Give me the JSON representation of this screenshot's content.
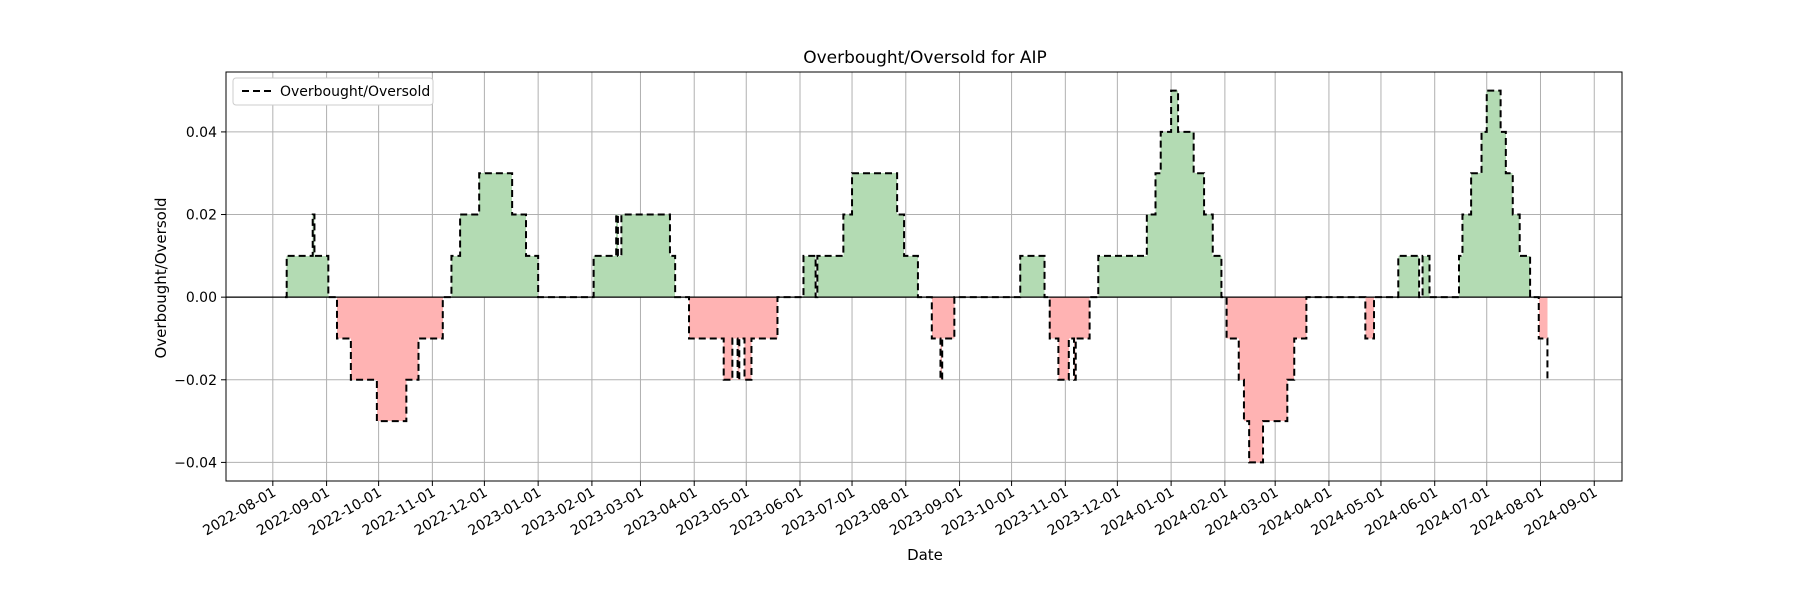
{
  "chart_data": {
    "type": "area",
    "title": "Overbought/Oversold for AIP",
    "xlabel": "Date",
    "ylabel": "Overbought/Oversold",
    "legend": {
      "placement": "top-left",
      "entries": [
        "Overbought/Oversold"
      ]
    },
    "grid": true,
    "xlim": [
      "2022-07-05",
      "2024-09-17"
    ],
    "ylim": [
      -0.0445,
      0.0545
    ],
    "x_ticks": [
      "2022-08-01",
      "2022-09-01",
      "2022-10-01",
      "2022-11-01",
      "2022-12-01",
      "2023-01-01",
      "2023-02-01",
      "2023-03-01",
      "2023-04-01",
      "2023-05-01",
      "2023-06-01",
      "2023-07-01",
      "2023-08-01",
      "2023-09-01",
      "2023-10-01",
      "2023-11-01",
      "2023-12-01",
      "2024-01-01",
      "2024-02-01",
      "2024-03-01",
      "2024-04-01",
      "2024-05-01",
      "2024-06-01",
      "2024-07-01",
      "2024-08-01",
      "2024-09-01"
    ],
    "y_ticks": [
      -0.04,
      -0.02,
      0.0,
      0.02,
      0.04
    ],
    "y_tick_labels": [
      "−0.04",
      "−0.02",
      "0.00",
      "0.02",
      "0.04"
    ],
    "fill_colors": {
      "positive": "#b3dbb3",
      "negative": "#ffb3b3"
    },
    "line_color": "#000000",
    "series": [
      {
        "name": "Overbought/Oversold",
        "style": "dashed-step",
        "points": [
          [
            "2022-08-08",
            0.0
          ],
          [
            "2022-08-09",
            0.01
          ],
          [
            "2022-08-23",
            0.01
          ],
          [
            "2022-08-24",
            0.02
          ],
          [
            "2022-08-25",
            0.01
          ],
          [
            "2022-09-01",
            0.01
          ],
          [
            "2022-09-02",
            0.0
          ],
          [
            "2022-09-06",
            0.0
          ],
          [
            "2022-09-07",
            -0.01
          ],
          [
            "2022-09-14",
            -0.01
          ],
          [
            "2022-09-15",
            -0.02
          ],
          [
            "2022-09-29",
            -0.02
          ],
          [
            "2022-09-30",
            -0.03
          ],
          [
            "2022-10-16",
            -0.03
          ],
          [
            "2022-10-17",
            -0.02
          ],
          [
            "2022-10-23",
            -0.02
          ],
          [
            "2022-10-24",
            -0.01
          ],
          [
            "2022-11-06",
            -0.01
          ],
          [
            "2022-11-07",
            0.0
          ],
          [
            "2022-11-11",
            0.0
          ],
          [
            "2022-11-12",
            0.01
          ],
          [
            "2022-11-16",
            0.01
          ],
          [
            "2022-11-17",
            0.02
          ],
          [
            "2022-11-27",
            0.02
          ],
          [
            "2022-11-28",
            0.03
          ],
          [
            "2022-12-16",
            0.03
          ],
          [
            "2022-12-17",
            0.02
          ],
          [
            "2022-12-24",
            0.02
          ],
          [
            "2022-12-25",
            0.01
          ],
          [
            "2022-12-31",
            0.01
          ],
          [
            "2023-01-01",
            0.0
          ],
          [
            "2023-02-01",
            0.0
          ],
          [
            "2023-02-02",
            0.01
          ],
          [
            "2023-02-14",
            0.01
          ],
          [
            "2023-02-15",
            0.02
          ],
          [
            "2023-02-16",
            0.01
          ],
          [
            "2023-02-18",
            0.02
          ],
          [
            "2023-03-17",
            0.02
          ],
          [
            "2023-03-18",
            0.01
          ],
          [
            "2023-03-20",
            0.01
          ],
          [
            "2023-03-21",
            0.0
          ],
          [
            "2023-03-28",
            0.0
          ],
          [
            "2023-03-29",
            -0.01
          ],
          [
            "2023-04-17",
            -0.01
          ],
          [
            "2023-04-18",
            -0.02
          ],
          [
            "2023-04-22",
            -0.02
          ],
          [
            "2023-04-23",
            -0.01
          ],
          [
            "2023-04-25",
            -0.01
          ],
          [
            "2023-04-26",
            -0.02
          ],
          [
            "2023-04-27",
            -0.01
          ],
          [
            "2023-04-29",
            -0.01
          ],
          [
            "2023-04-30",
            -0.02
          ],
          [
            "2023-05-03",
            -0.02
          ],
          [
            "2023-05-04",
            -0.01
          ],
          [
            "2023-05-18",
            -0.01
          ],
          [
            "2023-05-19",
            0.0
          ],
          [
            "2023-06-02",
            0.0
          ],
          [
            "2023-06-03",
            0.01
          ],
          [
            "2023-06-09",
            0.01
          ],
          [
            "2023-06-10",
            0.0
          ],
          [
            "2023-06-11",
            0.01
          ],
          [
            "2023-06-25",
            0.01
          ],
          [
            "2023-06-26",
            0.02
          ],
          [
            "2023-06-30",
            0.02
          ],
          [
            "2023-07-01",
            0.03
          ],
          [
            "2023-07-26",
            0.03
          ],
          [
            "2023-07-27",
            0.02
          ],
          [
            "2023-07-30",
            0.02
          ],
          [
            "2023-07-31",
            0.01
          ],
          [
            "2023-08-07",
            0.01
          ],
          [
            "2023-08-08",
            0.0
          ],
          [
            "2023-08-15",
            0.0
          ],
          [
            "2023-08-16",
            -0.01
          ],
          [
            "2023-08-20",
            -0.01
          ],
          [
            "2023-08-21",
            -0.02
          ],
          [
            "2023-08-22",
            -0.01
          ],
          [
            "2023-08-28",
            -0.01
          ],
          [
            "2023-08-29",
            0.0
          ],
          [
            "2023-10-05",
            0.0
          ],
          [
            "2023-10-06",
            0.01
          ],
          [
            "2023-10-19",
            0.01
          ],
          [
            "2023-10-20",
            0.0
          ],
          [
            "2023-10-22",
            0.0
          ],
          [
            "2023-10-23",
            -0.01
          ],
          [
            "2023-10-27",
            -0.01
          ],
          [
            "2023-10-28",
            -0.02
          ],
          [
            "2023-11-02",
            -0.02
          ],
          [
            "2023-11-03",
            -0.01
          ],
          [
            "2023-11-05",
            -0.01
          ],
          [
            "2023-11-06",
            -0.02
          ],
          [
            "2023-11-07",
            -0.01
          ],
          [
            "2023-11-14",
            -0.01
          ],
          [
            "2023-11-15",
            0.0
          ],
          [
            "2023-11-19",
            0.0
          ],
          [
            "2023-11-20",
            0.01
          ],
          [
            "2023-12-17",
            0.01
          ],
          [
            "2023-12-18",
            0.02
          ],
          [
            "2023-12-22",
            0.02
          ],
          [
            "2023-12-23",
            0.03
          ],
          [
            "2023-12-25",
            0.03
          ],
          [
            "2023-12-26",
            0.04
          ],
          [
            "2023-12-31",
            0.04
          ],
          [
            "2024-01-01",
            0.05
          ],
          [
            "2024-01-04",
            0.05
          ],
          [
            "2024-01-05",
            0.04
          ],
          [
            "2024-01-13",
            0.04
          ],
          [
            "2024-01-14",
            0.03
          ],
          [
            "2024-01-19",
            0.03
          ],
          [
            "2024-01-20",
            0.02
          ],
          [
            "2024-01-24",
            0.02
          ],
          [
            "2024-01-25",
            0.01
          ],
          [
            "2024-01-29",
            0.01
          ],
          [
            "2024-01-30",
            0.0
          ],
          [
            "2024-02-01",
            0.0
          ],
          [
            "2024-02-02",
            -0.01
          ],
          [
            "2024-02-08",
            -0.01
          ],
          [
            "2024-02-09",
            -0.02
          ],
          [
            "2024-02-11",
            -0.02
          ],
          [
            "2024-02-12",
            -0.03
          ],
          [
            "2024-02-14",
            -0.03
          ],
          [
            "2024-02-15",
            -0.04
          ],
          [
            "2024-02-22",
            -0.04
          ],
          [
            "2024-02-23",
            -0.03
          ],
          [
            "2024-03-07",
            -0.03
          ],
          [
            "2024-03-08",
            -0.02
          ],
          [
            "2024-03-11",
            -0.02
          ],
          [
            "2024-03-12",
            -0.01
          ],
          [
            "2024-03-18",
            -0.01
          ],
          [
            "2024-03-19",
            0.0
          ],
          [
            "2024-04-21",
            0.0
          ],
          [
            "2024-04-22",
            -0.01
          ],
          [
            "2024-04-26",
            -0.01
          ],
          [
            "2024-04-27",
            0.0
          ],
          [
            "2024-05-10",
            0.0
          ],
          [
            "2024-05-11",
            0.01
          ],
          [
            "2024-05-22",
            0.01
          ],
          [
            "2024-05-23",
            0.0
          ],
          [
            "2024-05-24",
            0.0
          ],
          [
            "2024-05-25",
            0.01
          ],
          [
            "2024-05-28",
            0.01
          ],
          [
            "2024-05-29",
            0.0
          ],
          [
            "2024-06-14",
            0.0
          ],
          [
            "2024-06-15",
            0.01
          ],
          [
            "2024-06-16",
            0.01
          ],
          [
            "2024-06-17",
            0.02
          ],
          [
            "2024-06-21",
            0.02
          ],
          [
            "2024-06-22",
            0.03
          ],
          [
            "2024-06-27",
            0.03
          ],
          [
            "2024-06-28",
            0.04
          ],
          [
            "2024-06-30",
            0.04
          ],
          [
            "2024-07-01",
            0.05
          ],
          [
            "2024-07-08",
            0.05
          ],
          [
            "2024-07-09",
            0.04
          ],
          [
            "2024-07-11",
            0.04
          ],
          [
            "2024-07-12",
            0.03
          ],
          [
            "2024-07-15",
            0.03
          ],
          [
            "2024-07-16",
            0.02
          ],
          [
            "2024-07-19",
            0.02
          ],
          [
            "2024-07-20",
            0.01
          ],
          [
            "2024-07-25",
            0.01
          ],
          [
            "2024-07-26",
            0.0
          ],
          [
            "2024-07-30",
            0.0
          ],
          [
            "2024-07-31",
            -0.01
          ],
          [
            "2024-08-04",
            -0.01
          ],
          [
            "2024-08-05",
            -0.02
          ]
        ]
      }
    ]
  }
}
